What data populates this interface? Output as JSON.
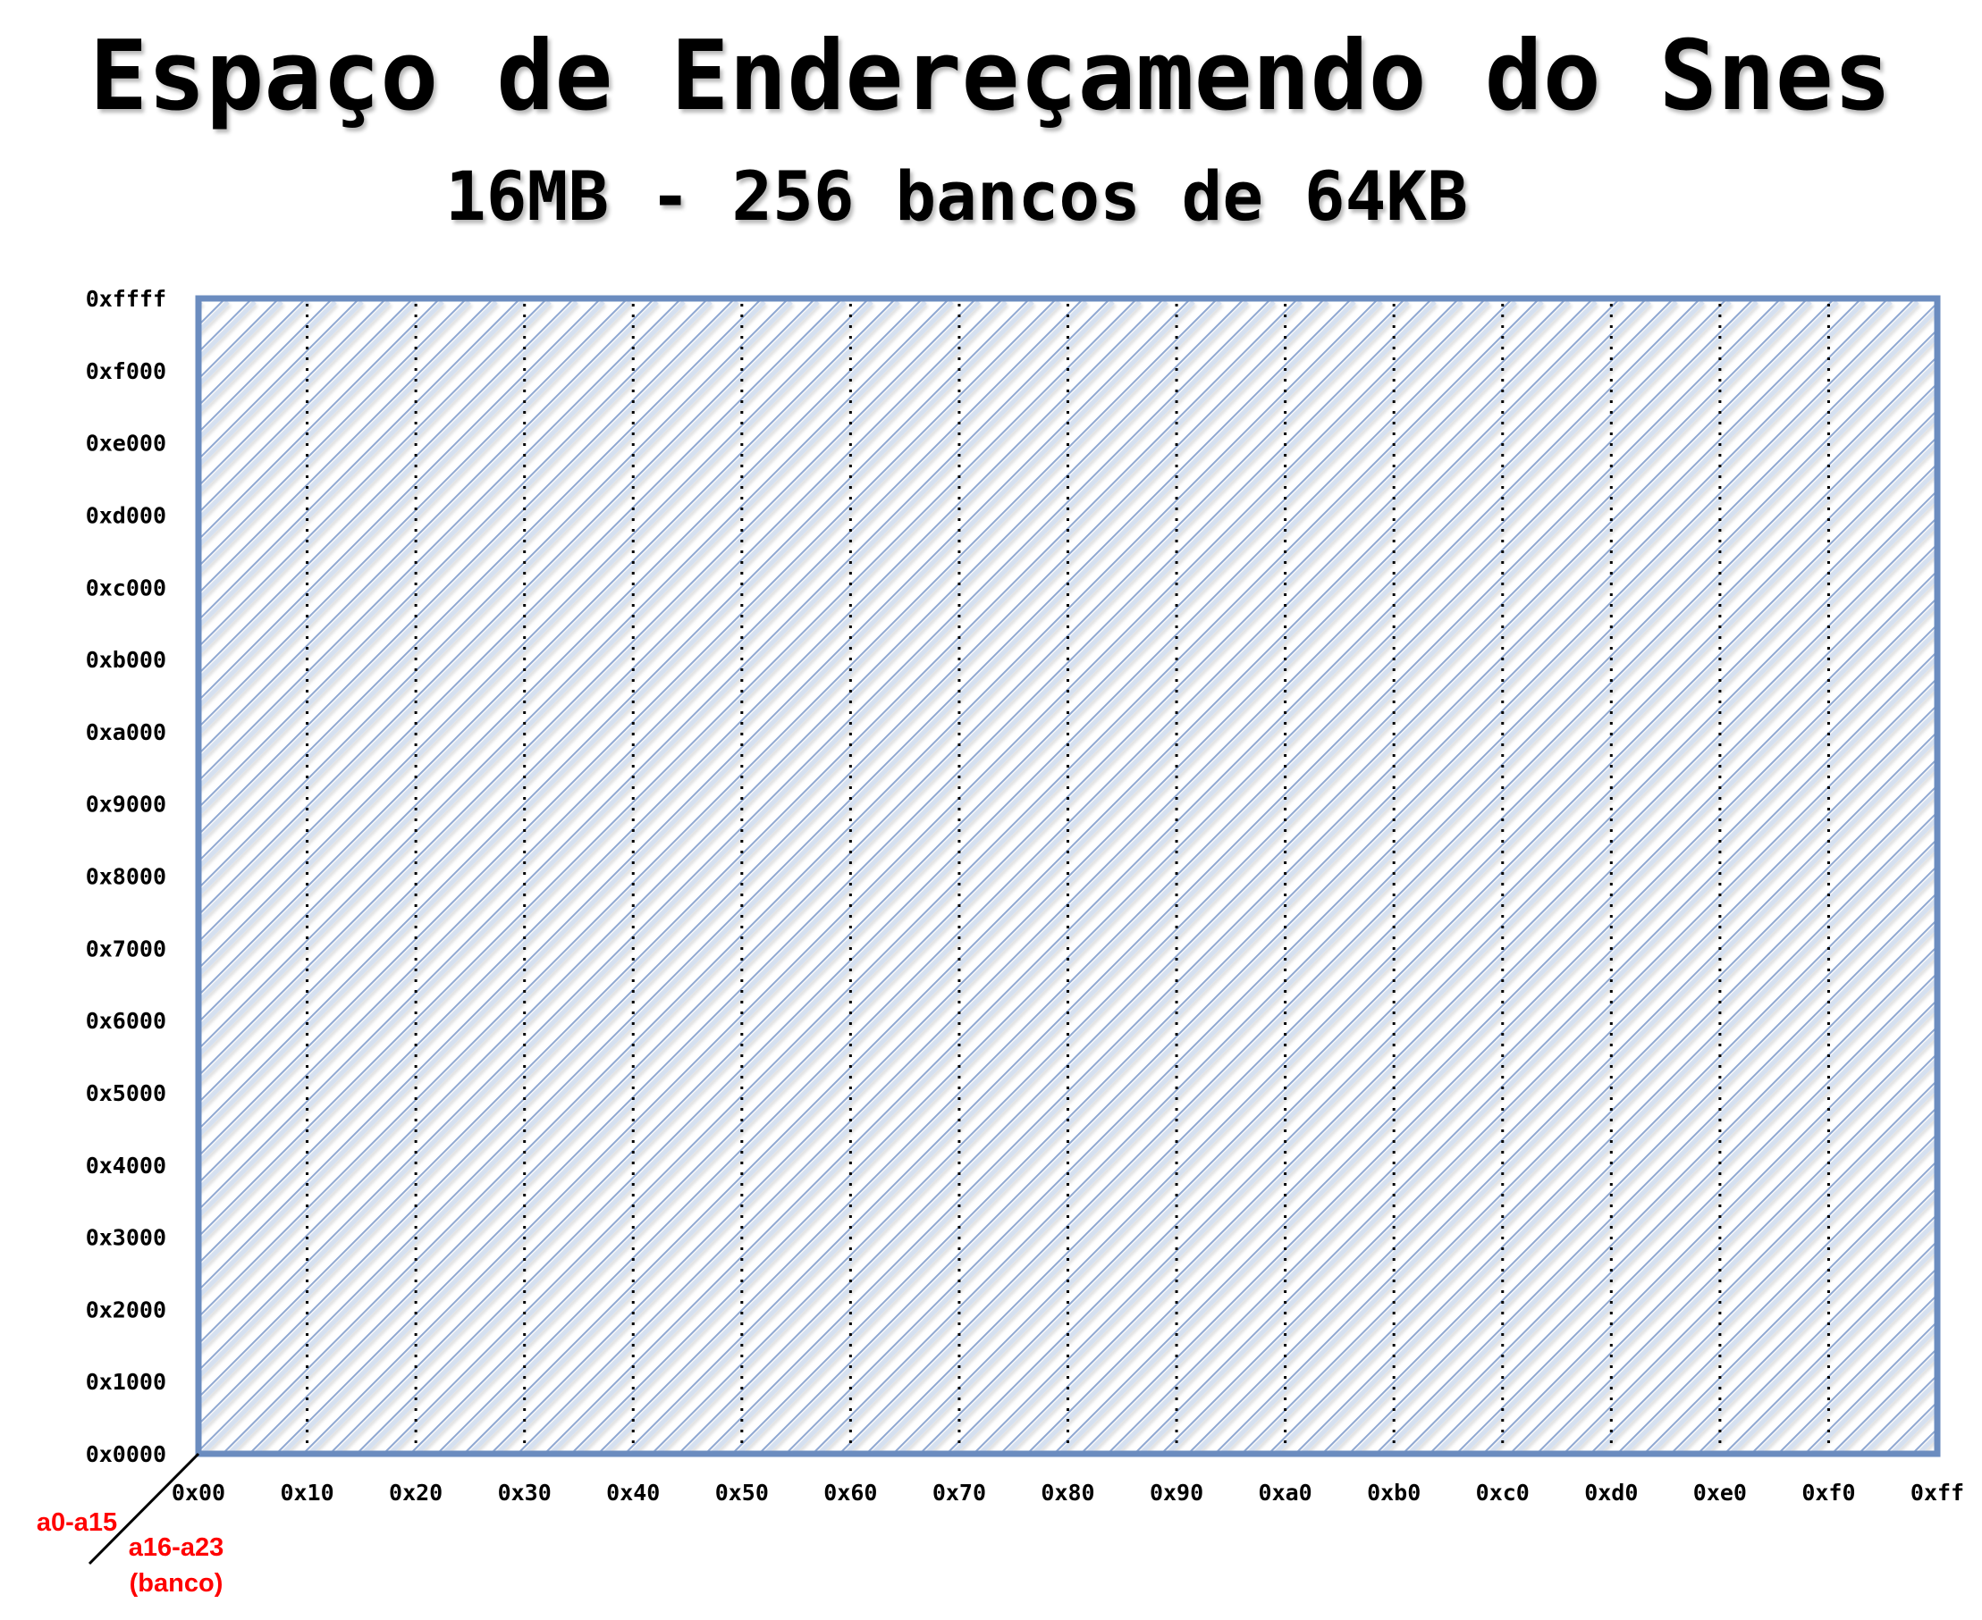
{
  "title": "Espaço de Endereçamendo do Snes",
  "subtitle": "16MB - 256 bancos de 64KB",
  "y_axis": {
    "name": "a0-a15",
    "ticks": [
      "0xffff",
      "0xf000",
      "0xe000",
      "0xd000",
      "0xc000",
      "0xb000",
      "0xa000",
      "0x9000",
      "0x8000",
      "0x7000",
      "0x6000",
      "0x5000",
      "0x4000",
      "0x3000",
      "0x2000",
      "0x1000",
      "0x0000"
    ]
  },
  "x_axis": {
    "name_line1": "a16-a23",
    "name_line2": "(banco)",
    "ticks": [
      "0x00",
      "0x10",
      "0x20",
      "0x30",
      "0x40",
      "0x50",
      "0x60",
      "0x70",
      "0x80",
      "0x90",
      "0xa0",
      "0xb0",
      "0xc0",
      "0xd0",
      "0xe0",
      "0xf0",
      "0xff"
    ]
  },
  "colors": {
    "frame": "#6b8cbf",
    "hatch": "#8fa8d2",
    "hatch_shadow": "#d5e0f0",
    "divider": "#000000",
    "axis_name": "#ff0000",
    "title": "#000000"
  }
}
